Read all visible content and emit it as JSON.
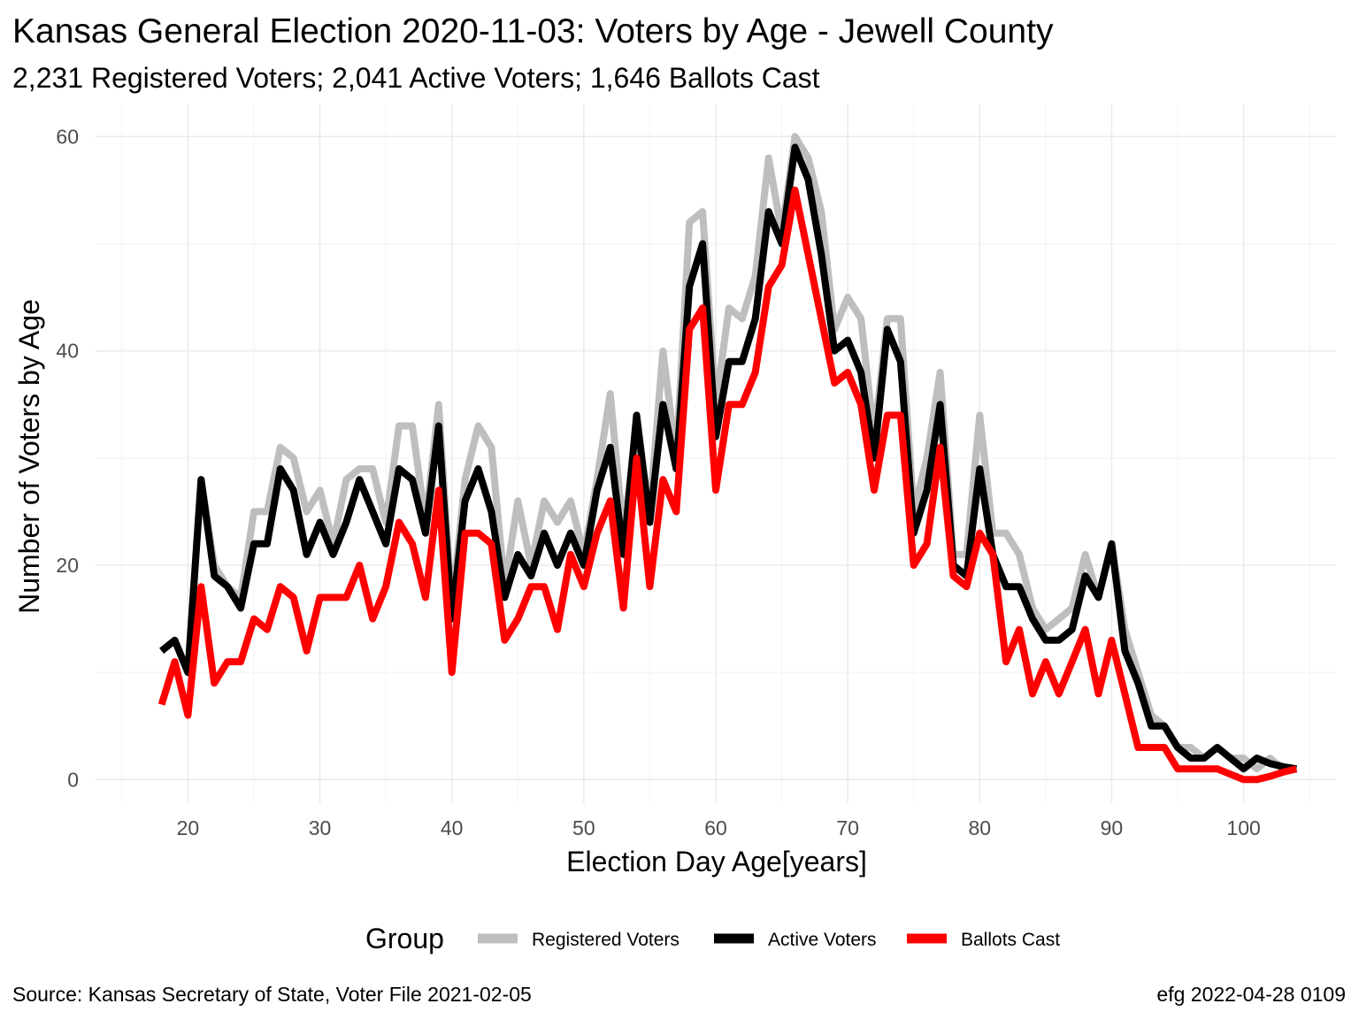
{
  "chart_data": {
    "type": "line",
    "title": "Kansas General Election 2020-11-03:  Voters by Age - Jewell County",
    "subtitle": "2,231 Registered Voters; 2,041 Active Voters; 1,646 Ballots Cast",
    "xlabel": "Election Day Age[years]",
    "ylabel": "Number of Voters by Age",
    "xlim": [
      13,
      107
    ],
    "ylim": [
      -2.2,
      63
    ],
    "x_ticks": [
      20,
      30,
      40,
      50,
      60,
      70,
      80,
      90,
      100
    ],
    "y_ticks": [
      0,
      20,
      40,
      60
    ],
    "grid": true,
    "legend": {
      "title": "Group",
      "position": "bottom",
      "entries": [
        "Registered Voters",
        "Active Voters",
        "Ballots Cast"
      ]
    },
    "caption_left": "Source:  Kansas Secretary of State, Voter File  2021-02-05",
    "caption_right": "efg 2022-04-28 0109",
    "x": [
      18,
      19,
      20,
      21,
      22,
      23,
      24,
      25,
      26,
      27,
      28,
      29,
      30,
      31,
      32,
      33,
      34,
      35,
      36,
      37,
      38,
      39,
      40,
      41,
      42,
      43,
      44,
      45,
      46,
      47,
      48,
      49,
      50,
      51,
      52,
      53,
      54,
      55,
      56,
      57,
      58,
      59,
      60,
      61,
      62,
      63,
      64,
      65,
      66,
      67,
      68,
      69,
      70,
      71,
      72,
      73,
      74,
      75,
      76,
      77,
      78,
      79,
      80,
      81,
      82,
      83,
      84,
      85,
      86,
      87,
      88,
      89,
      90,
      91,
      92,
      93,
      94,
      95,
      96,
      97,
      98,
      99,
      100,
      101,
      102,
      103,
      104
    ],
    "series": [
      {
        "name": "Registered Voters",
        "color": "#bebebe",
        "values": [
          12,
          13,
          10,
          28,
          20,
          18,
          17,
          25,
          25,
          31,
          30,
          25,
          27,
          22,
          28,
          29,
          29,
          24,
          33,
          33,
          24,
          35,
          16,
          28,
          33,
          31,
          18,
          26,
          20,
          26,
          24,
          26,
          21,
          28,
          36,
          23,
          33,
          25,
          40,
          30,
          52,
          53,
          35,
          44,
          43,
          47,
          58,
          51,
          60,
          58,
          53,
          42,
          45,
          43,
          32,
          43,
          43,
          25,
          30,
          38,
          21,
          21,
          34,
          23,
          23,
          21,
          16,
          14,
          15,
          16,
          21,
          17,
          22,
          14,
          10,
          6,
          5,
          3,
          3,
          2,
          3,
          2,
          2,
          1,
          2,
          1,
          1
        ]
      },
      {
        "name": "Active Voters",
        "color": "#000000",
        "values": [
          12,
          13,
          10,
          28,
          19,
          18,
          16,
          22,
          22,
          29,
          27,
          21,
          24,
          21,
          24,
          28,
          25,
          22,
          29,
          28,
          23,
          33,
          15,
          26,
          29,
          25,
          17,
          21,
          19,
          23,
          20,
          23,
          20,
          27,
          31,
          21,
          34,
          24,
          35,
          29,
          46,
          50,
          32,
          39,
          39,
          43,
          53,
          50,
          59,
          56,
          49,
          40,
          41,
          38,
          30,
          42,
          39,
          23,
          27,
          35,
          20,
          19,
          29,
          21,
          18,
          18,
          15,
          13,
          13,
          14,
          19,
          17,
          22,
          12,
          9,
          5,
          5,
          3,
          2,
          2,
          3,
          2,
          1,
          2,
          1.5,
          1.2,
          1
        ]
      },
      {
        "name": "Ballots Cast",
        "color": "#ff0000",
        "values": [
          7,
          11,
          6,
          18,
          9,
          11,
          11,
          15,
          14,
          18,
          17,
          12,
          17,
          17,
          17,
          20,
          15,
          18,
          24,
          22,
          17,
          27,
          10,
          23,
          23,
          22,
          13,
          15,
          18,
          18,
          14,
          21,
          18,
          23,
          26,
          16,
          30,
          18,
          28,
          25,
          42,
          44,
          27,
          35,
          35,
          38,
          46,
          48,
          55,
          49,
          43,
          37,
          38,
          35,
          27,
          34,
          34,
          20,
          22,
          31,
          19,
          18,
          23,
          21,
          11,
          14,
          8,
          11,
          8,
          11,
          14,
          8,
          13,
          8,
          3,
          3,
          3,
          1,
          1,
          1,
          1,
          0.5,
          0,
          0,
          0.3,
          0.7,
          1
        ]
      }
    ]
  }
}
